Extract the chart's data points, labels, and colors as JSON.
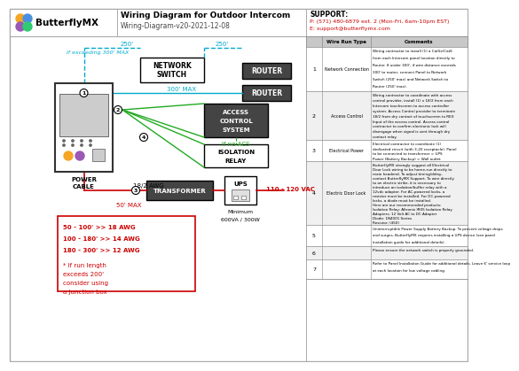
{
  "title": "Wiring Diagram for Outdoor Intercom",
  "subtitle": "Wiring-Diagram-v20-2021-12-08",
  "support_label": "SUPPORT:",
  "support_phone": "P: (571) 480-6879 ext. 2 (Mon-Fri, 6am-10pm EST)",
  "support_email": "E: support@butterflymx.com",
  "cyan": "#00aacc",
  "green": "#22aa22",
  "red": "#cc0000",
  "dark_box": "#444444",
  "wire_types": [
    "Network Connection",
    "Access Control",
    "Electrical Power",
    "Electric Door Lock",
    "",
    "",
    ""
  ],
  "wire_heights": [
    50,
    55,
    24,
    72,
    24,
    15,
    22
  ],
  "wire_comments": [
    "Wiring contractor to install (1) a Cat5e/Cat6\nfrom each Intercom panel location directly to\nRouter. If under 300', if wire distance exceeds\n300' to router, connect Panel to Network\nSwitch (250' max) and Network Switch to\nRouter (250' max).",
    "Wiring contractor to coordinate with access\ncontrol provider, install (1) x 18/2 from each\nIntercom touchscreen to access controller\nsystem. Access Control provider to terminate\n18/2 from dry contact of touchscreen to REX\nInput of the access control. Access control\ncontractor to confirm electronic lock will\ndisengage when signal is sent through dry\ncontact relay.",
    "Electrical contractor to coordinate (1)\ndedicated circuit (with 3-20 receptacle). Panel\nto be connected to transformer > UPS\nPower (Battery Backup) > Wall outlet",
    "ButterflyMX strongly suggest all Electrical\nDoor Lock wiring to be home-run directly to\nmain headend. To adjust timing/delay,\ncontact ButterflyMX Support. To wire directly\nto an electric strike, it is necessary to\nintroduce an isolation/buffer relay with a\n12vdc adapter. For AC-powered locks, a\nresistor must be installed. For DC-powered\nlocks, a diode must be installed.\nHere are our recommended products:\nIsolation Relay: Altronix IR05 Isolation Relay\nAdapters: 12 Volt AC to DC Adapter\nDiode: 1N4001 Series\nResistor: (450)",
    "Uninterruptible Power Supply Battery Backup. To prevent voltage drops\nand surges, ButterflyMX requires installing a UPS device (see panel\ninstallation guide for additional details).",
    "Please ensure the network switch is properly grounded.",
    "Refer to Panel Installation Guide for additional details. Leave 6' service loop\nat each location for low voltage cabling."
  ]
}
